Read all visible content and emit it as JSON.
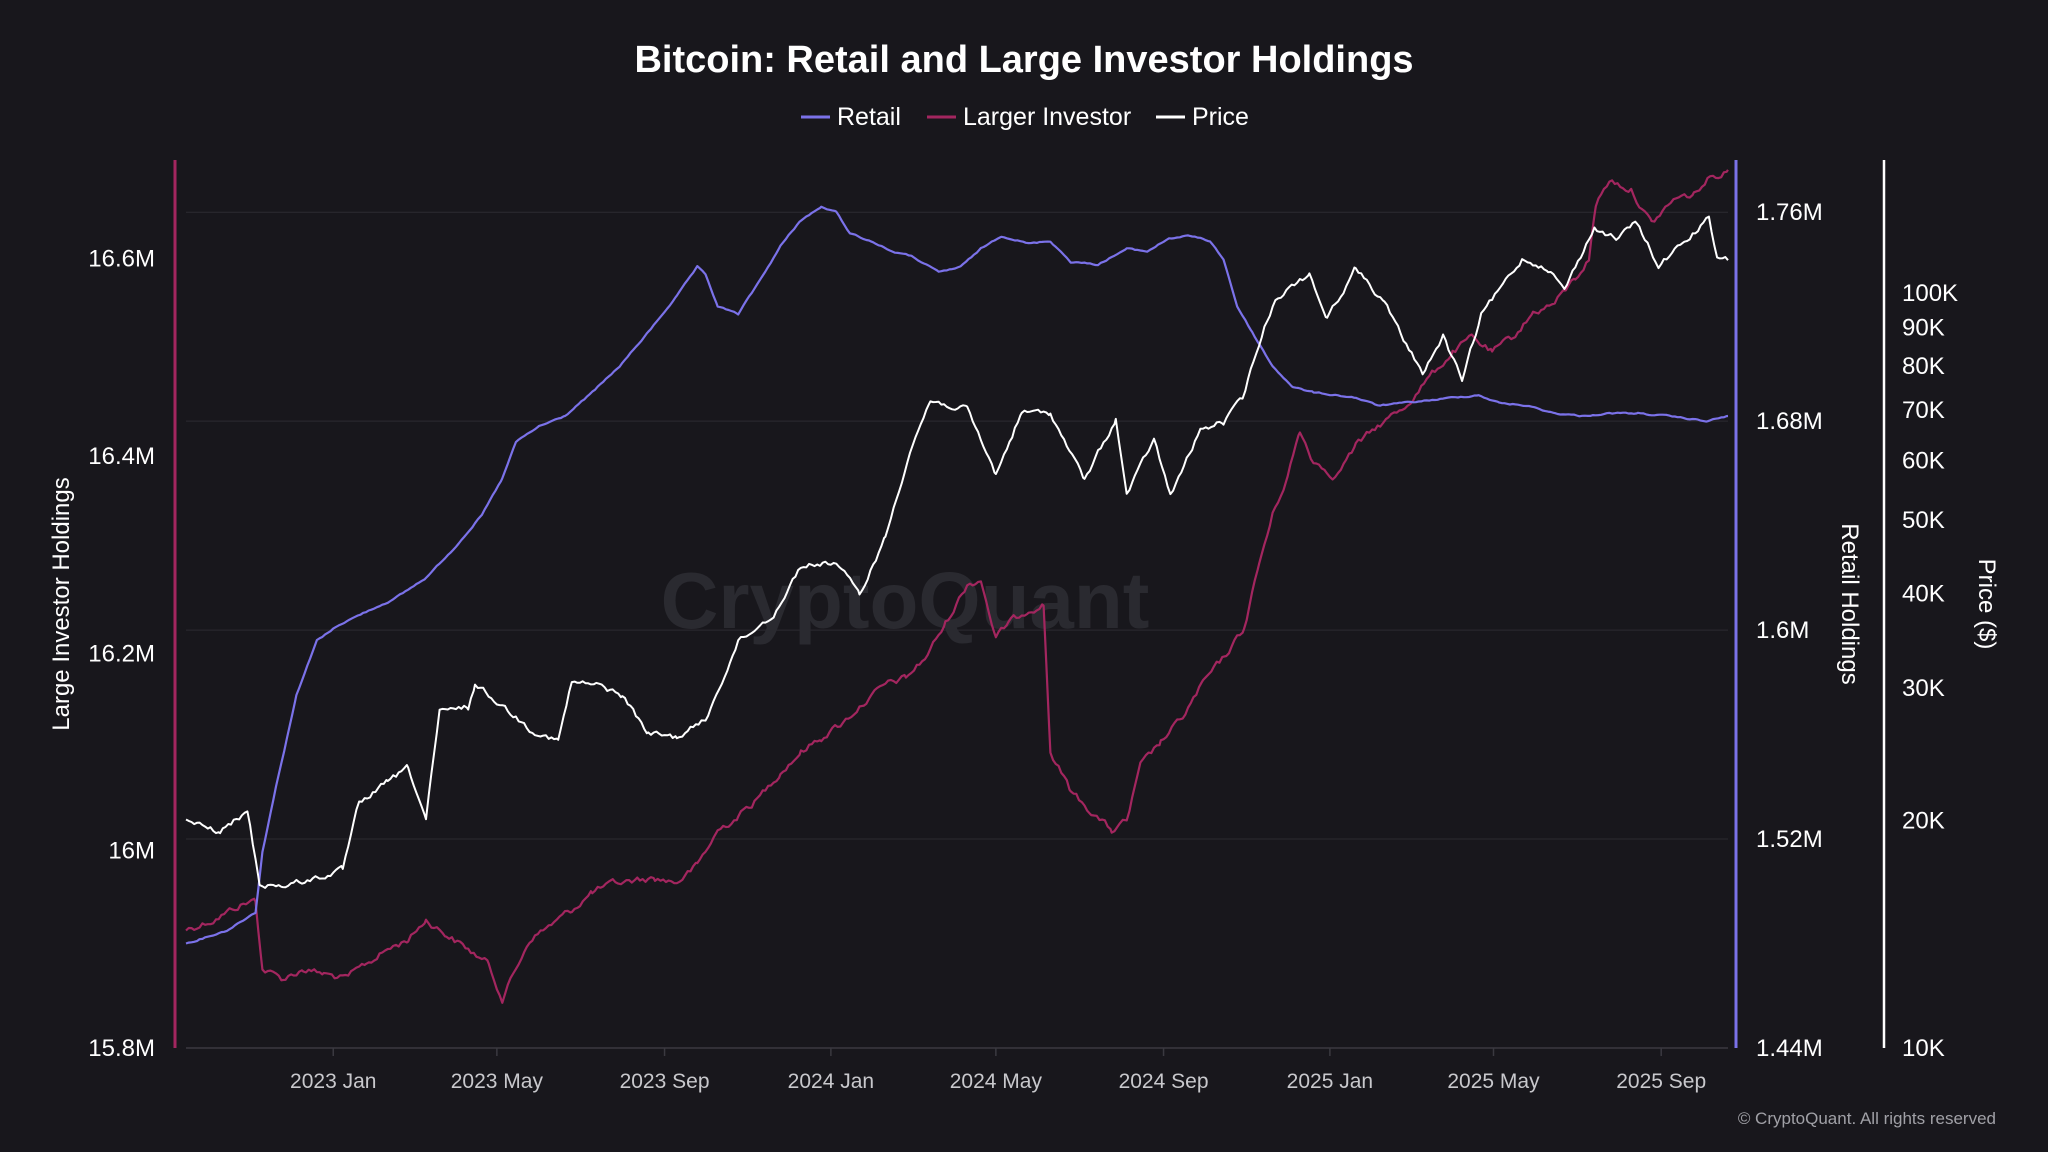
{
  "colors": {
    "background": "#18171c",
    "retail": "#7b72e9",
    "large": "#a3265f",
    "price": "#ffffff",
    "grid": "#2c2b31"
  },
  "watermark": "CryptoQuant",
  "copyright": "© CryptoQuant. All rights reserved",
  "chart_data": {
    "type": "line",
    "title": "Bitcoin: Retail and Large Investor Holdings",
    "legend_position": "top-center",
    "grid": true,
    "x_range": [
      "2022-09-15",
      "2025-10-20"
    ],
    "x_ticks": [
      {
        "date": "2023-01-01",
        "label": "2023 Jan"
      },
      {
        "date": "2023-05-01",
        "label": "2023 May"
      },
      {
        "date": "2023-09-01",
        "label": "2023 Sep"
      },
      {
        "date": "2024-01-01",
        "label": "2024 Jan"
      },
      {
        "date": "2024-05-01",
        "label": "2024 May"
      },
      {
        "date": "2024-09-01",
        "label": "2024 Sep"
      },
      {
        "date": "2025-01-01",
        "label": "2025 Jan"
      },
      {
        "date": "2025-05-01",
        "label": "2025 May"
      },
      {
        "date": "2025-09-01",
        "label": "2025 Sep"
      }
    ],
    "axes": {
      "left": {
        "label": "Large Investor Holdings",
        "range": [
          15800000,
          16700000
        ],
        "ticks": [
          15800000,
          16000000,
          16200000,
          16400000,
          16600000
        ],
        "tick_labels": [
          "15.8M",
          "16M",
          "16.2M",
          "16.4M",
          "16.6M"
        ]
      },
      "right": {
        "label": "Retail Holdings",
        "range": [
          1440000,
          1780000
        ],
        "ticks": [
          1440000,
          1520000,
          1600000,
          1680000,
          1760000
        ],
        "tick_labels": [
          "1.44M",
          "1.52M",
          "1.6M",
          "1.68M",
          "1.76M"
        ]
      },
      "price": {
        "label": "Price ($)",
        "scale": "log",
        "range": [
          10000,
          150000
        ],
        "ticks": [
          10000,
          20000,
          30000,
          40000,
          50000,
          60000,
          70000,
          80000,
          90000,
          100000
        ],
        "tick_labels": [
          "10K",
          "20K",
          "30K",
          "40K",
          "50K",
          "60K",
          "70K",
          "80K",
          "90K",
          "100K"
        ]
      }
    },
    "series": [
      {
        "name": "Retail",
        "axis": "right",
        "color": "#7b72e9",
        "points": [
          [
            "2022-09-15",
            1480000
          ],
          [
            "2022-10-15",
            1485000
          ],
          [
            "2022-11-05",
            1492000
          ],
          [
            "2022-11-10",
            1515000
          ],
          [
            "2022-11-20",
            1540000
          ],
          [
            "2022-12-05",
            1575000
          ],
          [
            "2022-12-20",
            1596000
          ],
          [
            "2023-01-05",
            1602000
          ],
          [
            "2023-01-25",
            1607000
          ],
          [
            "2023-02-15",
            1612000
          ],
          [
            "2023-03-10",
            1620000
          ],
          [
            "2023-03-30",
            1631000
          ],
          [
            "2023-04-20",
            1644000
          ],
          [
            "2023-05-05",
            1658000
          ],
          [
            "2023-05-15",
            1672000
          ],
          [
            "2023-06-01",
            1678000
          ],
          [
            "2023-06-20",
            1682000
          ],
          [
            "2023-07-10",
            1691000
          ],
          [
            "2023-07-30",
            1701000
          ],
          [
            "2023-08-20",
            1714000
          ],
          [
            "2023-09-10",
            1728000
          ],
          [
            "2023-09-25",
            1739000
          ],
          [
            "2023-10-01",
            1736000
          ],
          [
            "2023-10-10",
            1724000
          ],
          [
            "2023-10-25",
            1721000
          ],
          [
            "2023-11-10",
            1734000
          ],
          [
            "2023-11-25",
            1747000
          ],
          [
            "2023-12-10",
            1757000
          ],
          [
            "2023-12-25",
            1762000
          ],
          [
            "2024-01-05",
            1760000
          ],
          [
            "2024-01-15",
            1752000
          ],
          [
            "2024-01-30",
            1749000
          ],
          [
            "2024-02-15",
            1745000
          ],
          [
            "2024-03-01",
            1743000
          ],
          [
            "2024-03-20",
            1737000
          ],
          [
            "2024-04-05",
            1739000
          ],
          [
            "2024-04-20",
            1746000
          ],
          [
            "2024-05-05",
            1751000
          ],
          [
            "2024-05-25",
            1748000
          ],
          [
            "2024-06-10",
            1749000
          ],
          [
            "2024-06-25",
            1741000
          ],
          [
            "2024-07-15",
            1740000
          ],
          [
            "2024-08-05",
            1746000
          ],
          [
            "2024-08-20",
            1745000
          ],
          [
            "2024-09-05",
            1750000
          ],
          [
            "2024-09-20",
            1751000
          ],
          [
            "2024-10-05",
            1749000
          ],
          [
            "2024-10-15",
            1742000
          ],
          [
            "2024-10-25",
            1724000
          ],
          [
            "2024-11-05",
            1714000
          ],
          [
            "2024-11-20",
            1701000
          ],
          [
            "2024-12-05",
            1693000
          ],
          [
            "2024-12-20",
            1691000
          ],
          [
            "2025-01-05",
            1690000
          ],
          [
            "2025-01-20",
            1689000
          ],
          [
            "2025-02-05",
            1686000
          ],
          [
            "2025-02-25",
            1687000
          ],
          [
            "2025-03-15",
            1688000
          ],
          [
            "2025-04-01",
            1689000
          ],
          [
            "2025-04-20",
            1690000
          ],
          [
            "2025-05-05",
            1687000
          ],
          [
            "2025-05-25",
            1686000
          ],
          [
            "2025-06-15",
            1683000
          ],
          [
            "2025-07-05",
            1682000
          ],
          [
            "2025-07-25",
            1683000
          ],
          [
            "2025-08-15",
            1683000
          ],
          [
            "2025-09-05",
            1682000
          ],
          [
            "2025-09-20",
            1681000
          ],
          [
            "2025-10-05",
            1680000
          ],
          [
            "2025-10-20",
            1682000
          ]
        ]
      },
      {
        "name": "Larger Investor",
        "axis": "left",
        "color": "#a3265f",
        "points": [
          [
            "2022-09-15",
            15920000
          ],
          [
            "2022-10-05",
            15930000
          ],
          [
            "2022-10-25",
            15945000
          ],
          [
            "2022-11-05",
            15950000
          ],
          [
            "2022-11-10",
            15880000
          ],
          [
            "2022-11-25",
            15870000
          ],
          [
            "2022-12-10",
            15880000
          ],
          [
            "2022-12-25",
            15875000
          ],
          [
            "2023-01-10",
            15870000
          ],
          [
            "2023-01-25",
            15885000
          ],
          [
            "2023-02-10",
            15900000
          ],
          [
            "2023-02-25",
            15910000
          ],
          [
            "2023-03-10",
            15930000
          ],
          [
            "2023-03-25",
            15915000
          ],
          [
            "2023-04-10",
            15900000
          ],
          [
            "2023-04-25",
            15885000
          ],
          [
            "2023-05-05",
            15850000
          ],
          [
            "2023-05-15",
            15880000
          ],
          [
            "2023-05-25",
            15910000
          ],
          [
            "2023-06-10",
            15925000
          ],
          [
            "2023-06-25",
            15940000
          ],
          [
            "2023-07-10",
            15958000
          ],
          [
            "2023-07-25",
            15966000
          ],
          [
            "2023-08-10",
            15970000
          ],
          [
            "2023-08-25",
            15972000
          ],
          [
            "2023-09-10",
            15968000
          ],
          [
            "2023-09-25",
            15985000
          ],
          [
            "2023-10-10",
            16020000
          ],
          [
            "2023-10-25",
            16035000
          ],
          [
            "2023-11-10",
            16055000
          ],
          [
            "2023-11-25",
            16080000
          ],
          [
            "2023-12-10",
            16100000
          ],
          [
            "2023-12-25",
            16115000
          ],
          [
            "2024-01-10",
            16130000
          ],
          [
            "2024-01-25",
            16150000
          ],
          [
            "2024-02-10",
            16168000
          ],
          [
            "2024-02-25",
            16175000
          ],
          [
            "2024-03-10",
            16195000
          ],
          [
            "2024-03-25",
            16230000
          ],
          [
            "2024-04-10",
            16270000
          ],
          [
            "2024-04-20",
            16275000
          ],
          [
            "2024-05-01",
            16215000
          ],
          [
            "2024-05-10",
            16230000
          ],
          [
            "2024-05-25",
            16245000
          ],
          [
            "2024-06-05",
            16250000
          ],
          [
            "2024-06-10",
            16100000
          ],
          [
            "2024-06-25",
            16060000
          ],
          [
            "2024-07-10",
            16040000
          ],
          [
            "2024-07-25",
            16020000
          ],
          [
            "2024-08-05",
            16030000
          ],
          [
            "2024-08-15",
            16085000
          ],
          [
            "2024-08-30",
            16110000
          ],
          [
            "2024-09-15",
            16135000
          ],
          [
            "2024-09-30",
            16170000
          ],
          [
            "2024-10-15",
            16195000
          ],
          [
            "2024-10-30",
            16225000
          ],
          [
            "2024-11-10",
            16290000
          ],
          [
            "2024-11-20",
            16340000
          ],
          [
            "2024-12-01",
            16380000
          ],
          [
            "2024-12-10",
            16425000
          ],
          [
            "2024-12-20",
            16395000
          ],
          [
            "2025-01-05",
            16380000
          ],
          [
            "2025-01-20",
            16410000
          ],
          [
            "2025-02-05",
            16430000
          ],
          [
            "2025-02-25",
            16450000
          ],
          [
            "2025-03-15",
            16480000
          ],
          [
            "2025-04-01",
            16505000
          ],
          [
            "2025-04-15",
            16520000
          ],
          [
            "2025-04-30",
            16505000
          ],
          [
            "2025-05-15",
            16520000
          ],
          [
            "2025-05-30",
            16545000
          ],
          [
            "2025-06-15",
            16555000
          ],
          [
            "2025-06-30",
            16580000
          ],
          [
            "2025-07-10",
            16600000
          ],
          [
            "2025-07-15",
            16655000
          ],
          [
            "2025-07-25",
            16680000
          ],
          [
            "2025-08-10",
            16670000
          ],
          [
            "2025-08-25",
            16635000
          ],
          [
            "2025-09-10",
            16660000
          ],
          [
            "2025-09-25",
            16665000
          ],
          [
            "2025-10-05",
            16680000
          ],
          [
            "2025-10-20",
            16690000
          ]
        ]
      },
      {
        "name": "Price",
        "axis": "price",
        "color": "#ffffff",
        "points": [
          [
            "2022-09-15",
            20000
          ],
          [
            "2022-10-10",
            19300
          ],
          [
            "2022-10-30",
            20600
          ],
          [
            "2022-11-08",
            16500
          ],
          [
            "2022-11-25",
            16400
          ],
          [
            "2022-12-20",
            16800
          ],
          [
            "2023-01-08",
            17200
          ],
          [
            "2023-01-20",
            21100
          ],
          [
            "2023-02-10",
            22500
          ],
          [
            "2023-02-25",
            23500
          ],
          [
            "2023-03-10",
            20100
          ],
          [
            "2023-03-20",
            27800
          ],
          [
            "2023-04-10",
            28300
          ],
          [
            "2023-04-15",
            30300
          ],
          [
            "2023-05-01",
            28800
          ],
          [
            "2023-05-25",
            26500
          ],
          [
            "2023-06-15",
            25500
          ],
          [
            "2023-06-25",
            30500
          ],
          [
            "2023-07-15",
            30200
          ],
          [
            "2023-08-01",
            29300
          ],
          [
            "2023-08-20",
            26100
          ],
          [
            "2023-09-10",
            25800
          ],
          [
            "2023-10-01",
            27200
          ],
          [
            "2023-10-25",
            34500
          ],
          [
            "2023-11-20",
            37500
          ],
          [
            "2023-12-10",
            43500
          ],
          [
            "2024-01-05",
            44000
          ],
          [
            "2024-01-22",
            39800
          ],
          [
            "2024-02-10",
            47500
          ],
          [
            "2024-02-28",
            62000
          ],
          [
            "2024-03-14",
            72000
          ],
          [
            "2024-04-10",
            70000
          ],
          [
            "2024-05-01",
            57500
          ],
          [
            "2024-05-20",
            69500
          ],
          [
            "2024-06-10",
            69300
          ],
          [
            "2024-07-05",
            56500
          ],
          [
            "2024-07-28",
            68000
          ],
          [
            "2024-08-05",
            54000
          ],
          [
            "2024-08-25",
            64000
          ],
          [
            "2024-09-06",
            53800
          ],
          [
            "2024-09-28",
            65800
          ],
          [
            "2024-10-15",
            67500
          ],
          [
            "2024-10-29",
            72500
          ],
          [
            "2024-11-12",
            88000
          ],
          [
            "2024-11-22",
            98500
          ],
          [
            "2024-12-17",
            106000
          ],
          [
            "2024-12-30",
            92500
          ],
          [
            "2025-01-20",
            108000
          ],
          [
            "2025-02-10",
            97000
          ],
          [
            "2025-02-28",
            84000
          ],
          [
            "2025-03-10",
            78500
          ],
          [
            "2025-03-25",
            87500
          ],
          [
            "2025-04-08",
            76500
          ],
          [
            "2025-04-22",
            93500
          ],
          [
            "2025-05-22",
            111000
          ],
          [
            "2025-06-10",
            108000
          ],
          [
            "2025-06-22",
            101000
          ],
          [
            "2025-07-14",
            122000
          ],
          [
            "2025-07-30",
            118000
          ],
          [
            "2025-08-14",
            124000
          ],
          [
            "2025-08-30",
            108500
          ],
          [
            "2025-09-18",
            117000
          ],
          [
            "2025-10-06",
            125500
          ],
          [
            "2025-10-12",
            111000
          ],
          [
            "2025-10-20",
            110500
          ]
        ]
      }
    ]
  }
}
